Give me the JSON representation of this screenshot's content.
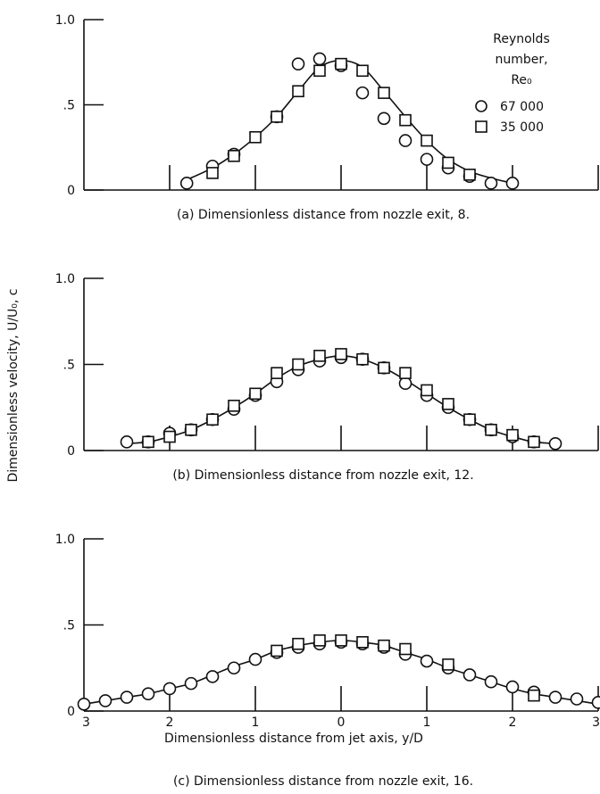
{
  "figure": {
    "ylabel": "Dimensionless velocity, U/U₀, c",
    "xlabel": "Dimensionless distance from jet axis, y/D",
    "legend": {
      "title_lines": [
        "Reynolds",
        "number,",
        "Re₀"
      ],
      "entries": [
        "67 000",
        "35 000"
      ]
    }
  },
  "chart_data": [
    {
      "type": "line",
      "caption": "(a) Dimensionless distance from nozzle exit, 8.",
      "x_range": [
        -3,
        3
      ],
      "ylim": [
        0,
        1.0
      ],
      "y_ticks": [
        {
          "v": 0,
          "label": "0"
        },
        {
          "v": 0.5,
          "label": ".5"
        },
        {
          "v": 1.0,
          "label": "1.0"
        }
      ],
      "x_tick_labels": [],
      "series": [
        {
          "name": "67 000",
          "marker": "circle",
          "x": [
            -1.8,
            -1.5,
            -1.25,
            -0.75,
            -0.5,
            -0.25,
            0,
            0.25,
            0.5,
            0.75,
            1.0,
            1.25,
            1.5,
            1.75,
            2.0
          ],
          "y": [
            0.04,
            0.14,
            0.21,
            0.43,
            0.74,
            0.77,
            0.73,
            0.57,
            0.42,
            0.29,
            0.18,
            0.13,
            0.08,
            0.04,
            0.04
          ]
        },
        {
          "name": "35 000",
          "marker": "square",
          "x": [
            -1.5,
            -1.25,
            -1.0,
            -0.75,
            -0.5,
            -0.25,
            0,
            0.25,
            0.5,
            0.75,
            1.0,
            1.25,
            1.5
          ],
          "y": [
            0.1,
            0.2,
            0.31,
            0.43,
            0.58,
            0.7,
            0.74,
            0.7,
            0.57,
            0.41,
            0.29,
            0.16,
            0.09
          ]
        }
      ],
      "fit": {
        "x": [
          -1.8,
          -1.5,
          -1.25,
          -1.0,
          -0.75,
          -0.5,
          -0.25,
          0,
          0.25,
          0.5,
          0.75,
          1.0,
          1.25,
          1.5,
          1.75,
          2.0
        ],
        "y": [
          0.06,
          0.13,
          0.21,
          0.31,
          0.43,
          0.58,
          0.72,
          0.76,
          0.72,
          0.58,
          0.43,
          0.29,
          0.18,
          0.11,
          0.07,
          0.04
        ]
      }
    },
    {
      "type": "line",
      "caption": "(b) Dimensionless distance from nozzle exit, 12.",
      "x_range": [
        -3,
        3
      ],
      "ylim": [
        0,
        1.0
      ],
      "y_ticks": [
        {
          "v": 0,
          "label": "0"
        },
        {
          "v": 0.5,
          "label": ".5"
        },
        {
          "v": 1.0,
          "label": "1.0"
        }
      ],
      "x_tick_labels": [],
      "series": [
        {
          "name": "67 000",
          "marker": "circle",
          "x": [
            -2.5,
            -2.25,
            -2.0,
            -1.75,
            -1.5,
            -1.25,
            -1.0,
            -0.75,
            -0.5,
            -0.25,
            0,
            0.25,
            0.5,
            0.75,
            1.0,
            1.25,
            1.5,
            1.75,
            2.0,
            2.25,
            2.5
          ],
          "y": [
            0.05,
            0.05,
            0.1,
            0.12,
            0.18,
            0.24,
            0.32,
            0.4,
            0.47,
            0.52,
            0.54,
            0.53,
            0.48,
            0.39,
            0.32,
            0.25,
            0.18,
            0.12,
            0.08,
            0.05,
            0.04
          ]
        },
        {
          "name": "35 000",
          "marker": "square",
          "x": [
            -2.25,
            -2.0,
            -1.75,
            -1.5,
            -1.25,
            -1.0,
            -0.75,
            -0.5,
            -0.25,
            0,
            0.25,
            0.5,
            0.75,
            1.0,
            1.25,
            1.5,
            1.75,
            2.0,
            2.25
          ],
          "y": [
            0.05,
            0.08,
            0.12,
            0.18,
            0.26,
            0.33,
            0.45,
            0.5,
            0.55,
            0.56,
            0.53,
            0.48,
            0.45,
            0.35,
            0.27,
            0.18,
            0.12,
            0.09,
            0.05
          ]
        }
      ],
      "fit": {
        "x": [
          -2.5,
          -2.25,
          -2.0,
          -1.75,
          -1.5,
          -1.25,
          -1.0,
          -0.75,
          -0.5,
          -0.25,
          0,
          0.25,
          0.5,
          0.75,
          1.0,
          1.25,
          1.5,
          1.75,
          2.0,
          2.25,
          2.5
        ],
        "y": [
          0.04,
          0.05,
          0.08,
          0.12,
          0.18,
          0.25,
          0.33,
          0.42,
          0.49,
          0.53,
          0.55,
          0.53,
          0.48,
          0.41,
          0.33,
          0.25,
          0.18,
          0.12,
          0.08,
          0.05,
          0.04
        ]
      }
    },
    {
      "type": "line",
      "caption": "(c) Dimensionless distance from nozzle exit, 16.",
      "x_range": [
        -3,
        3
      ],
      "ylim": [
        0,
        1.0
      ],
      "y_ticks": [
        {
          "v": 0,
          "label": "0"
        },
        {
          "v": 0.5,
          "label": ".5"
        },
        {
          "v": 1.0,
          "label": "1.0"
        }
      ],
      "x_tick_labels": [
        {
          "v": -3,
          "label": "3"
        },
        {
          "v": -2,
          "label": "2"
        },
        {
          "v": -1,
          "label": "1"
        },
        {
          "v": 0,
          "label": "0"
        },
        {
          "v": 1,
          "label": "1"
        },
        {
          "v": 2,
          "label": "2"
        },
        {
          "v": 3,
          "label": "3"
        }
      ],
      "series": [
        {
          "name": "67 000",
          "marker": "circle",
          "x": [
            -3.0,
            -2.75,
            -2.5,
            -2.25,
            -2.0,
            -1.75,
            -1.5,
            -1.25,
            -1.0,
            -0.75,
            -0.5,
            -0.25,
            0,
            0.25,
            0.5,
            0.75,
            1.0,
            1.25,
            1.5,
            1.75,
            2.0,
            2.25,
            2.5,
            2.75,
            3.0
          ],
          "y": [
            0.04,
            0.06,
            0.08,
            0.1,
            0.13,
            0.16,
            0.2,
            0.25,
            0.3,
            0.34,
            0.37,
            0.39,
            0.4,
            0.39,
            0.37,
            0.33,
            0.29,
            0.25,
            0.21,
            0.17,
            0.14,
            0.11,
            0.08,
            0.07,
            0.05
          ]
        },
        {
          "name": "35 000",
          "marker": "square",
          "x": [
            -0.75,
            -0.5,
            -0.25,
            0,
            0.25,
            0.5,
            0.75,
            1.25,
            2.25
          ],
          "y": [
            0.35,
            0.39,
            0.41,
            0.41,
            0.4,
            0.38,
            0.36,
            0.27,
            0.09
          ]
        }
      ],
      "fit": {
        "x": [
          -3.0,
          -2.75,
          -2.5,
          -2.25,
          -2.0,
          -1.75,
          -1.5,
          -1.25,
          -1.0,
          -0.75,
          -0.5,
          -0.25,
          0,
          0.25,
          0.5,
          0.75,
          1.0,
          1.25,
          1.5,
          1.75,
          2.0,
          2.25,
          2.5,
          2.75,
          3.0
        ],
        "y": [
          0.04,
          0.06,
          0.08,
          0.1,
          0.13,
          0.16,
          0.21,
          0.26,
          0.3,
          0.35,
          0.38,
          0.4,
          0.41,
          0.4,
          0.38,
          0.34,
          0.3,
          0.25,
          0.21,
          0.17,
          0.13,
          0.1,
          0.08,
          0.06,
          0.04
        ]
      }
    }
  ]
}
